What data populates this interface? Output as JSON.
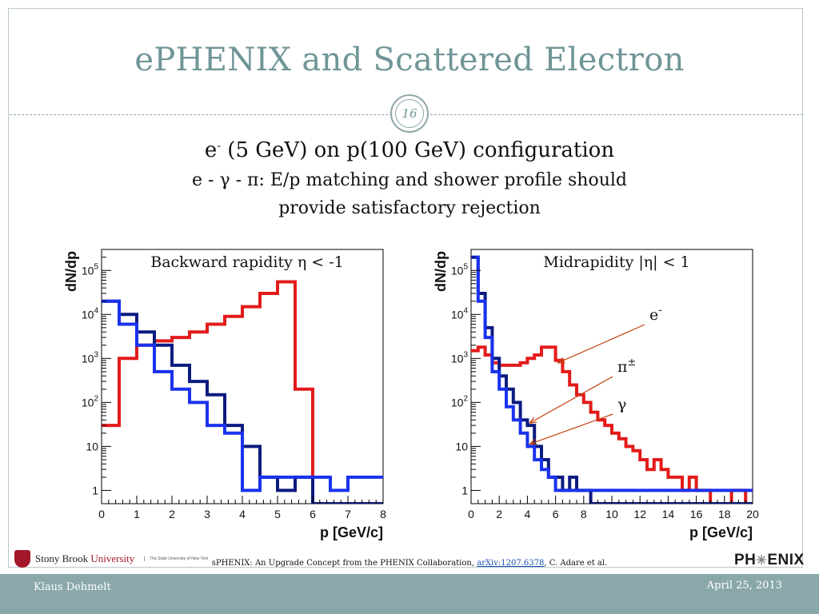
{
  "slide": {
    "title": "ePHENIX and Scattered Electron",
    "page_number": "16",
    "subtitle_pre": "e",
    "subtitle_sup": "-",
    "subtitle_post": " (5 GeV) on p(100 GeV) configuration",
    "line2": "e - γ - π: E/p matching and shower profile should",
    "line3": "provide satisfactory rejection"
  },
  "colors": {
    "electron": "#e31b1b",
    "pion": "#0c1b80",
    "gamma": "#1a32ee",
    "title": "#6f9597"
  },
  "chart_data": [
    {
      "type": "line",
      "title": "Backward rapidity η < -1",
      "xlabel": "p [GeV/c]",
      "ylabel": "dN/dp",
      "yscale": "log",
      "xlim": [
        0,
        8
      ],
      "ylim": [
        0.5,
        300000
      ],
      "xticks": [
        0,
        1,
        2,
        3,
        4,
        5,
        6,
        7,
        8
      ],
      "yticks": [
        {
          "value": 1,
          "label": "1"
        },
        {
          "value": 10,
          "label": "10"
        },
        {
          "value": 100,
          "label": "10^2"
        },
        {
          "value": 1000,
          "label": "10^3"
        },
        {
          "value": 10000,
          "label": "10^4"
        },
        {
          "value": 100000,
          "label": "10^5"
        }
      ],
      "bin_edges": [
        0,
        0.5,
        1,
        1.5,
        2,
        2.5,
        3,
        3.5,
        4,
        4.5,
        5,
        5.5,
        6,
        6.5,
        7,
        7.5,
        8
      ],
      "series": [
        {
          "name": "e-",
          "color": "#e31b1b",
          "values": [
            30,
            1000,
            2000,
            2500,
            3000,
            4000,
            6000,
            9000,
            15000,
            30000,
            55000,
            200,
            0.5,
            0.5,
            0.5,
            0.5
          ]
        },
        {
          "name": "π±",
          "color": "#0c1b80",
          "values": [
            20000,
            10000,
            4000,
            2000,
            700,
            300,
            150,
            30,
            10,
            2,
            1,
            2,
            0.5,
            0.5,
            0.5,
            0.5
          ]
        },
        {
          "name": "γ",
          "color": "#1a32ee",
          "values": [
            20000,
            6000,
            2000,
            500,
            200,
            100,
            30,
            20,
            1,
            2,
            2,
            2,
            2,
            1,
            2,
            2
          ]
        }
      ]
    },
    {
      "type": "line",
      "title": "Midrapidity |η| < 1",
      "xlabel": "p [GeV/c]",
      "ylabel": "dN/dp",
      "yscale": "log",
      "xlim": [
        0,
        20
      ],
      "ylim": [
        0.5,
        300000
      ],
      "xticks": [
        0,
        2,
        4,
        6,
        8,
        10,
        12,
        14,
        16,
        18,
        20
      ],
      "yticks": [
        {
          "value": 1,
          "label": "1"
        },
        {
          "value": 10,
          "label": "10"
        },
        {
          "value": 100,
          "label": "10^2"
        },
        {
          "value": 1000,
          "label": "10^3"
        },
        {
          "value": 10000,
          "label": "10^4"
        },
        {
          "value": 100000,
          "label": "10^5"
        }
      ],
      "bin_edges": [
        0,
        0.5,
        1,
        1.5,
        2,
        2.5,
        3,
        3.5,
        4,
        4.5,
        5,
        5.5,
        6,
        6.5,
        7,
        7.5,
        8,
        8.5,
        9,
        9.5,
        10,
        10.5,
        11,
        11.5,
        12,
        12.5,
        13,
        13.5,
        14,
        14.5,
        15,
        15.5,
        16,
        16.5,
        17,
        17.5,
        18,
        18.5,
        19,
        19.5,
        20
      ],
      "series": [
        {
          "name": "e-",
          "color": "#e31b1b",
          "values": [
            1500,
            1800,
            1200,
            800,
            700,
            700,
            700,
            800,
            1000,
            1200,
            1800,
            1800,
            900,
            500,
            250,
            150,
            100,
            60,
            40,
            30,
            20,
            15,
            10,
            8,
            5,
            3,
            5,
            3,
            2,
            2,
            1,
            2,
            1,
            1,
            0.5,
            0.5,
            0.5,
            1,
            1,
            0.5
          ]
        },
        {
          "name": "π±",
          "color": "#0c1b80",
          "values": [
            200000,
            30000,
            5000,
            1000,
            400,
            200,
            100,
            40,
            30,
            10,
            5,
            2,
            2,
            1,
            2,
            1,
            1,
            0.5,
            0.5,
            0.5,
            0.5,
            0.5,
            0.5,
            0.5,
            0.5,
            0.5,
            0.5,
            0.5,
            0.5,
            0.5,
            0.5,
            0.5,
            0.5,
            0.5,
            0.5,
            0.5,
            0.5,
            0.5,
            0.5,
            0.5
          ]
        },
        {
          "name": "γ",
          "color": "#1a32ee",
          "values": [
            200000,
            20000,
            3000,
            500,
            200,
            80,
            40,
            20,
            10,
            5,
            3,
            2,
            1,
            1,
            1,
            1,
            1,
            1,
            1,
            1,
            1,
            1,
            1,
            1,
            1,
            1,
            1,
            1,
            1,
            1,
            1,
            1,
            1,
            1,
            1,
            1,
            1,
            1,
            1,
            1
          ]
        }
      ],
      "annotations": [
        {
          "text": "e",
          "sup": "-",
          "arrow_to": {
            "x": 6,
            "y": 700
          }
        },
        {
          "text": "π",
          "sup": "±",
          "arrow_to": {
            "x": 4,
            "y": 30
          }
        },
        {
          "text": "γ",
          "arrow_to": {
            "x": 4,
            "y": 10
          }
        }
      ]
    }
  ],
  "footer": {
    "citation_pre": "sPHENIX: An Upgrade Concept from the PHENIX Collaboration, ",
    "citation_link": "arXiv:1207.6378",
    "citation_post": ", C. Adare et al.",
    "presenter": "Klaus Dehmelt",
    "date": "April 25, 2013"
  },
  "logos": {
    "sbu_a": "Stony Brook ",
    "sbu_b": "University",
    "sbu_small": "The State University of New York",
    "phenix_a": "PH",
    "phenix_star": "✳",
    "phenix_b": "ENIX"
  }
}
